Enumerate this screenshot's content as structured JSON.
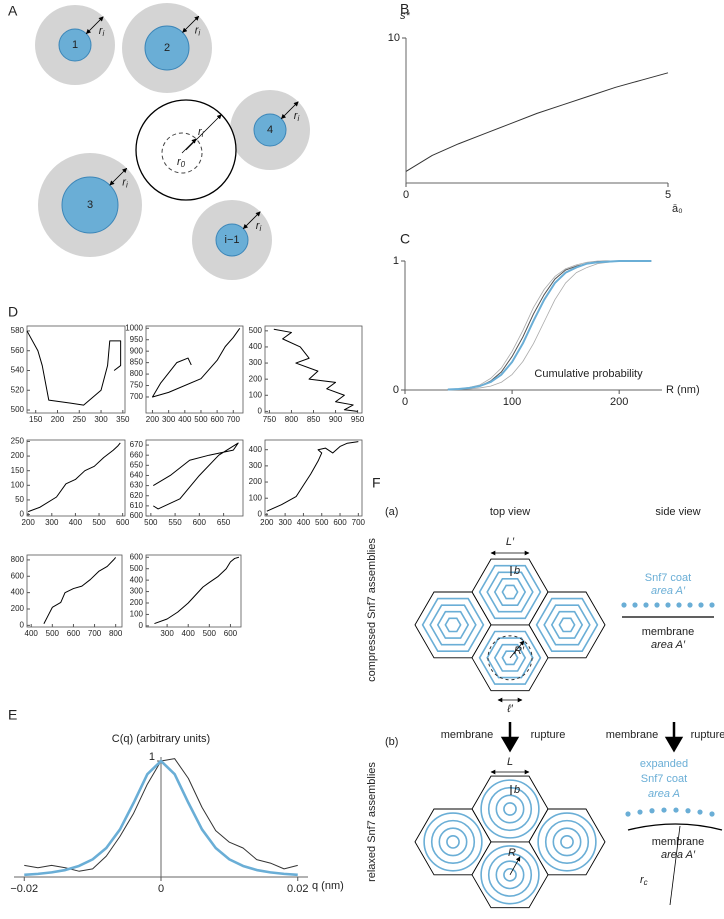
{
  "panel_labels": [
    "A",
    "B",
    "C",
    "D",
    "E",
    "F"
  ],
  "diagram_a": {
    "cells": [
      "1",
      "2",
      "4",
      "3",
      "i−1"
    ],
    "r": "r",
    "i": "i",
    "zero": "0"
  },
  "chart_data": [
    {
      "type": "line",
      "y_label": "s*",
      "x_label": "ā₀",
      "x": [
        0,
        0.5,
        1,
        1.5,
        2,
        2.5,
        3,
        3.5,
        4,
        4.5,
        5
      ],
      "series": [
        {
          "color": "#333333",
          "values": [
            0.8,
            1.9,
            2.7,
            3.4,
            4.1,
            4.8,
            5.4,
            6.0,
            6.6,
            7.1,
            7.6
          ]
        }
      ],
      "xlim": [
        0,
        5
      ],
      "ylim": [
        0,
        10
      ],
      "xticks": [
        0,
        5
      ],
      "yticks": [
        10
      ]
    },
    {
      "type": "line",
      "x_label": "R (nm)",
      "annotation": "Cumulative probability",
      "x": [
        40,
        50,
        60,
        70,
        80,
        90,
        100,
        110,
        120,
        130,
        140,
        150,
        160,
        170,
        180,
        190,
        200,
        210,
        220,
        230
      ],
      "series": [
        {
          "color": "#aaaaaa",
          "values": [
            0.005,
            0.01,
            0.02,
            0.04,
            0.09,
            0.17,
            0.3,
            0.46,
            0.64,
            0.78,
            0.88,
            0.94,
            0.97,
            0.99,
            1,
            1,
            1,
            1,
            1,
            1
          ]
        },
        {
          "color": "#aaaaaa",
          "values": [
            0.002,
            0.004,
            0.008,
            0.016,
            0.03,
            0.06,
            0.12,
            0.22,
            0.36,
            0.53,
            0.7,
            0.83,
            0.91,
            0.95,
            0.98,
            0.99,
            1,
            1,
            1,
            1
          ]
        },
        {
          "color": "#555555",
          "values": [
            0.003,
            0.007,
            0.014,
            0.03,
            0.07,
            0.14,
            0.26,
            0.41,
            0.59,
            0.74,
            0.86,
            0.93,
            0.96,
            0.98,
            0.995,
            1,
            1,
            1,
            1,
            1
          ]
        },
        {
          "color": "#6aaed6",
          "values": [
            0.004,
            0.008,
            0.016,
            0.031,
            0.062,
            0.119,
            0.217,
            0.36,
            0.536,
            0.7,
            0.83,
            0.91,
            0.95,
            0.98,
            0.99,
            0.995,
            1,
            1,
            1,
            1
          ]
        }
      ],
      "xlim": [
        0,
        240
      ],
      "ylim": [
        0,
        1
      ],
      "xticks": [
        0,
        100,
        200
      ],
      "yticks": [
        0,
        1
      ]
    },
    {
      "type": "line",
      "x": [
        130,
        155,
        165,
        180,
        230,
        260,
        300,
        315,
        320,
        345,
        345,
        330
      ],
      "series": [
        {
          "color": "#000000",
          "values": [
            580,
            560,
            545,
            510,
            507,
            505,
            520,
            545,
            570,
            570,
            545,
            540
          ]
        }
      ],
      "xlim": [
        130,
        355
      ],
      "ylim": [
        497,
        585
      ],
      "xticks": [
        150,
        200,
        250,
        300,
        350
      ],
      "yticks": [
        500,
        520,
        540,
        560,
        580
      ]
    },
    {
      "type": "line",
      "x": [
        440,
        420,
        350,
        250,
        200,
        300,
        500,
        600,
        650,
        700,
        740
      ],
      "series": [
        {
          "color": "#000000",
          "values": [
            840,
            870,
            850,
            760,
            700,
            720,
            780,
            860,
            920,
            960,
            1000
          ]
        }
      ],
      "xlim": [
        160,
        760
      ],
      "ylim": [
        630,
        1010
      ],
      "xticks": [
        200,
        300,
        400,
        500,
        600,
        700
      ],
      "yticks": [
        700,
        750,
        800,
        850,
        900,
        950,
        1000
      ]
    },
    {
      "type": "line",
      "x": [
        760,
        800,
        780,
        820,
        840,
        810,
        860,
        840,
        900,
        880,
        920,
        900,
        940,
        920,
        950
      ],
      "series": [
        {
          "color": "#000000",
          "values": [
            510,
            490,
            450,
            400,
            330,
            300,
            250,
            200,
            180,
            140,
            100,
            60,
            40,
            10,
            0
          ]
        }
      ],
      "xlim": [
        740,
        960
      ],
      "ylim": [
        -10,
        530
      ],
      "xticks": [
        750,
        800,
        850,
        900,
        950
      ],
      "yticks": [
        0,
        100,
        200,
        300,
        400,
        500
      ]
    },
    {
      "type": "line",
      "x": [
        200,
        250,
        320,
        360,
        400,
        440,
        480,
        520,
        560,
        580,
        590
      ],
      "series": [
        {
          "color": "#000000",
          "values": [
            10,
            25,
            60,
            105,
            120,
            150,
            165,
            195,
            220,
            235,
            245
          ]
        }
      ],
      "xlim": [
        195,
        610
      ],
      "ylim": [
        -5,
        255
      ],
      "xticks": [
        200,
        300,
        400,
        500,
        600
      ],
      "yticks": [
        0,
        50,
        100,
        150,
        200,
        250
      ]
    },
    {
      "type": "line",
      "x": [
        505,
        515,
        560,
        600,
        640,
        680,
        670,
        620,
        580,
        540,
        505
      ],
      "series": [
        {
          "color": "#000000",
          "values": [
            610,
            607,
            617,
            640,
            660,
            672,
            665,
            660,
            655,
            640,
            630
          ]
        }
      ],
      "xlim": [
        490,
        690
      ],
      "ylim": [
        600,
        675
      ],
      "xticks": [
        500,
        550,
        600,
        650
      ],
      "yticks": [
        600,
        610,
        620,
        630,
        640,
        650,
        660,
        670
      ]
    },
    {
      "type": "line",
      "x": [
        200,
        280,
        360,
        400,
        440,
        480,
        500,
        480,
        520,
        560,
        600,
        640,
        700
      ],
      "series": [
        {
          "color": "#000000",
          "values": [
            20,
            60,
            110,
            180,
            250,
            330,
            380,
            400,
            410,
            380,
            420,
            440,
            450
          ]
        }
      ],
      "xlim": [
        190,
        720
      ],
      "ylim": [
        -10,
        460
      ],
      "xticks": [
        200,
        300,
        400,
        500,
        600,
        700
      ],
      "yticks": [
        0,
        100,
        200,
        300,
        400
      ]
    },
    {
      "type": "line",
      "x": [
        460,
        480,
        500,
        540,
        560,
        600,
        640,
        680,
        720,
        760,
        790,
        800
      ],
      "series": [
        {
          "color": "#000000",
          "values": [
            20,
            120,
            220,
            280,
            400,
            450,
            480,
            560,
            660,
            720,
            800,
            830
          ]
        }
      ],
      "xlim": [
        380,
        830
      ],
      "ylim": [
        -20,
        860
      ],
      "xticks": [
        400,
        500,
        600,
        700,
        800
      ],
      "yticks": [
        0,
        200,
        400,
        600,
        800
      ]
    },
    {
      "type": "line",
      "x": [
        240,
        300,
        350,
        400,
        430,
        470,
        500,
        540,
        580,
        600,
        620,
        640
      ],
      "series": [
        {
          "color": "#000000",
          "values": [
            20,
            60,
            120,
            200,
            260,
            340,
            380,
            430,
            500,
            560,
            590,
            600
          ]
        }
      ],
      "xlim": [
        200,
        650
      ],
      "ylim": [
        -10,
        620
      ],
      "xticks": [
        300,
        400,
        500,
        600
      ],
      "yticks": [
        0,
        100,
        200,
        300,
        400,
        500,
        600
      ]
    },
    {
      "type": "line",
      "title": "C(q) (arbitrary units)",
      "x_label": "q (nm)",
      "x": [
        -0.02,
        -0.018,
        -0.016,
        -0.014,
        -0.012,
        -0.01,
        -0.008,
        -0.006,
        -0.004,
        -0.002,
        0,
        0.002,
        0.004,
        0.006,
        0.008,
        0.01,
        0.012,
        0.014,
        0.016,
        0.018,
        0.02
      ],
      "series": [
        {
          "color": "#333333",
          "values": [
            0.1,
            0.08,
            0.1,
            0.08,
            0.05,
            0.07,
            0.18,
            0.35,
            0.55,
            0.8,
            1.0,
            1.02,
            0.85,
            0.6,
            0.4,
            0.3,
            0.25,
            0.15,
            0.12,
            0.07,
            0.1
          ]
        },
        {
          "color": "#6aaed6",
          "values": [
            0.019,
            0.027,
            0.04,
            0.06,
            0.095,
            0.152,
            0.25,
            0.41,
            0.64,
            0.886,
            1,
            0.886,
            0.64,
            0.41,
            0.25,
            0.152,
            0.095,
            0.06,
            0.04,
            0.027,
            0.019
          ]
        }
      ],
      "xlim": [
        -0.0215,
        0.0215
      ],
      "ylim": [
        0,
        1
      ],
      "xticks": [
        {
          "value": -0.02,
          "label": "−0.02"
        },
        0,
        0.02
      ],
      "yticks": [
        1
      ]
    }
  ],
  "diagram_f": {
    "a_label": "(a)",
    "b_label": "(b)",
    "top_view": "top view",
    "side_view": "side view",
    "compressed": {
      "title": "compressed Snf7 assemblies",
      "L": "L′",
      "b": "b",
      "R": "R′",
      "l": "ℓ′",
      "coat": "Snf7 coat",
      "coat_area": "area A′",
      "membrane": "membrane",
      "membrane_area": "area A′"
    },
    "rupture": {
      "membrane": "membrane",
      "rupture": "rupture"
    },
    "relaxed": {
      "title": "relaxed Snf7 assemblies",
      "L": "L",
      "b": "b",
      "R": "R",
      "expanded": "expanded",
      "coat": "Snf7 coat",
      "coat_area": "area A",
      "membrane": "membrane",
      "membrane_area": "area A′",
      "rc": "r",
      "rc_sub": "c"
    }
  }
}
